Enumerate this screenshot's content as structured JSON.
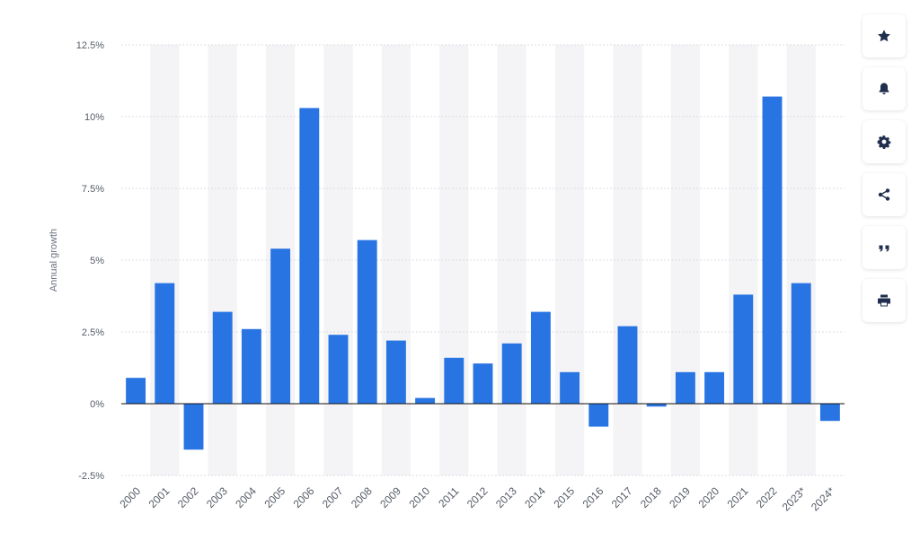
{
  "chart_data": {
    "type": "bar",
    "ylabel": "Annual growth",
    "ylim": [
      -2.5,
      12.5
    ],
    "y_ticks": [
      {
        "value": -2.5,
        "label": "-2.5%"
      },
      {
        "value": 0,
        "label": "0%"
      },
      {
        "value": 2.5,
        "label": "2.5%"
      },
      {
        "value": 5,
        "label": "5%"
      },
      {
        "value": 7.5,
        "label": "7.5%"
      },
      {
        "value": 10,
        "label": "10%"
      },
      {
        "value": 12.5,
        "label": "12.5%"
      }
    ],
    "categories": [
      "2000",
      "2001",
      "2002",
      "2003",
      "2004",
      "2005",
      "2006",
      "2007",
      "2008",
      "2009",
      "2010",
      "2011",
      "2012",
      "2013",
      "2014",
      "2015",
      "2016",
      "2017",
      "2018",
      "2019",
      "2020",
      "2021",
      "2022",
      "2023*",
      "2024*"
    ],
    "values": [
      0.9,
      4.2,
      -1.6,
      3.2,
      2.6,
      5.4,
      10.3,
      2.4,
      5.7,
      2.2,
      0.2,
      1.6,
      1.4,
      2.1,
      3.2,
      1.1,
      -0.8,
      2.7,
      -0.1,
      1.1,
      1.1,
      3.8,
      10.7,
      4.2,
      -0.6
    ],
    "bar_color": "#2874e2",
    "band_color": "#f4f4f6",
    "grid": true,
    "grid_color": "#dcdde3",
    "zero_line_color": "#111111"
  },
  "toolbar": {
    "buttons": [
      {
        "name": "favorite-button",
        "icon": "star-icon"
      },
      {
        "name": "notification-button",
        "icon": "bell-icon"
      },
      {
        "name": "settings-button",
        "icon": "gear-icon"
      },
      {
        "name": "share-button",
        "icon": "share-icon"
      },
      {
        "name": "cite-button",
        "icon": "quote-icon"
      },
      {
        "name": "print-button",
        "icon": "print-icon"
      }
    ]
  }
}
